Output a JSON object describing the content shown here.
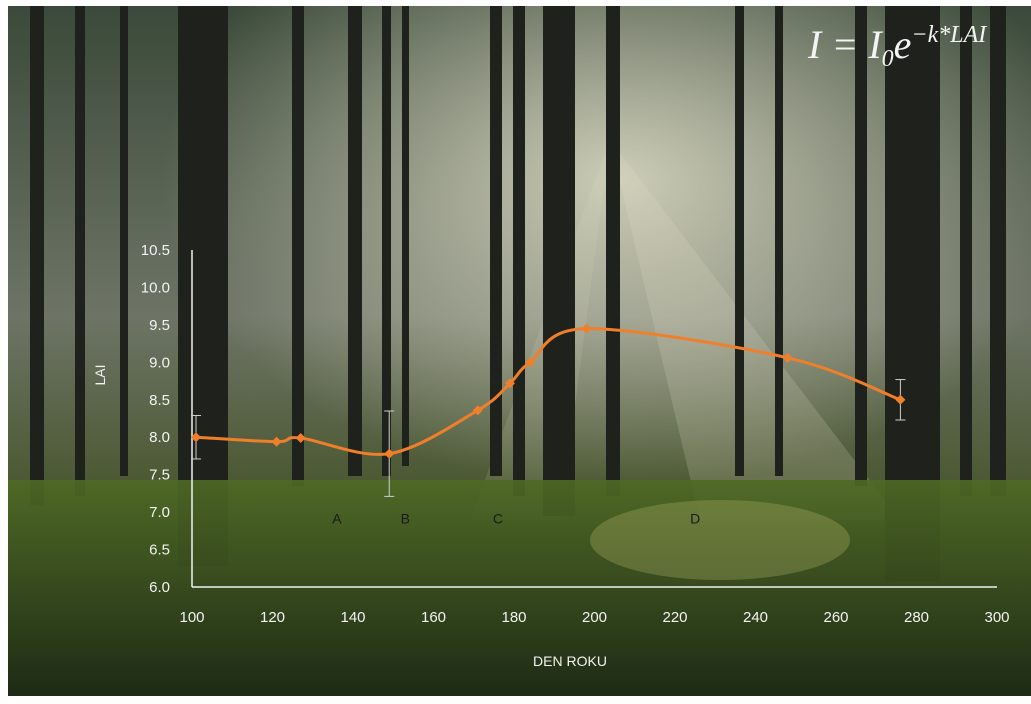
{
  "chart_data": {
    "type": "line",
    "formula": {
      "lhs": "I = I",
      "sub": "0",
      "base": "e",
      "sup": "−k*LAI"
    },
    "x_label": "DEN ROKU",
    "y_label": "LAI",
    "x": [
      101,
      121,
      127,
      149,
      171,
      179,
      184,
      198,
      248,
      276
    ],
    "series": [
      {
        "color": "#f07f2c",
        "values": [
          8.0,
          7.94,
          7.99,
          7.78,
          8.36,
          8.72,
          9.0,
          9.45,
          9.06,
          8.5
        ],
        "errors": [
          0.29,
          null,
          null,
          0.57,
          null,
          null,
          null,
          null,
          null,
          0.27
        ]
      }
    ],
    "annotations": [
      {
        "text": "A",
        "x": 136,
        "y": 6.85
      },
      {
        "text": "B",
        "x": 153,
        "y": 6.85
      },
      {
        "text": "C",
        "x": 176,
        "y": 6.85
      },
      {
        "text": "D",
        "x": 225,
        "y": 6.85
      }
    ],
    "xlim": [
      100,
      300
    ],
    "xticks": [
      100,
      120,
      140,
      160,
      180,
      200,
      220,
      240,
      260,
      280,
      300
    ],
    "ylim": [
      6.0,
      10.5
    ],
    "yticks": [
      {
        "value": 6.0,
        "label": "6.0"
      },
      {
        "value": 6.5,
        "label": "6.5"
      },
      {
        "value": 7.0,
        "label": "7.0"
      },
      {
        "value": 7.5,
        "label": "7.5"
      },
      {
        "value": 8.0,
        "label": "8.0"
      },
      {
        "value": 8.5,
        "label": "8.5"
      },
      {
        "value": 9.0,
        "label": "9.0"
      },
      {
        "value": 9.5,
        "label": "9.5"
      },
      {
        "value": 10.0,
        "label": "10.0"
      },
      {
        "value": 10.5,
        "label": "10.5"
      }
    ]
  }
}
